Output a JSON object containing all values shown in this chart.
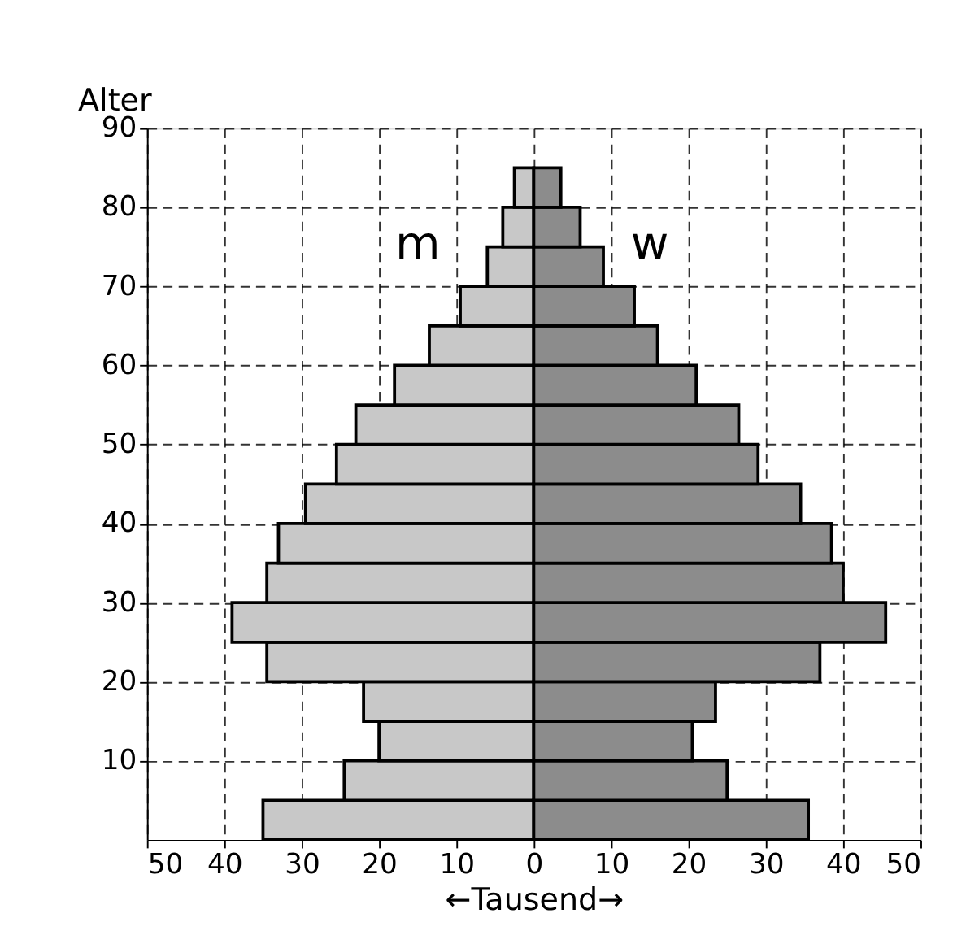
{
  "chart_data": {
    "type": "bar",
    "orientation": "horizontal",
    "stacked": true,
    "xlabel": "←Tausend→",
    "ylabel": "Alter",
    "x": [
      2.5,
      7.5,
      12.5,
      17.5,
      22.5,
      27.5,
      32.5,
      37.5,
      42.5,
      47.5,
      52.5,
      57.5,
      62.5,
      67.5,
      72.5,
      77.5,
      82.5
    ],
    "series": [
      {
        "name": "m",
        "color": "#c8c8c8",
        "values": [
          -35,
          -24.5,
          -20,
          -22,
          -34.5,
          -39,
          -34.5,
          -33,
          -29.5,
          -25.5,
          -23,
          -18,
          -13.5,
          -9.5,
          -6,
          -4,
          -2.5
        ]
      },
      {
        "name": "w",
        "color": "#8c8c8c",
        "values": [
          35.5,
          25,
          20.5,
          23.5,
          37,
          45.5,
          40,
          38.5,
          34.5,
          29,
          26.5,
          21,
          16,
          13,
          9,
          6,
          3.5
        ]
      }
    ],
    "xlim": [
      -50,
      50
    ],
    "xticks": [
      {
        "value": -50,
        "label": "50"
      },
      {
        "value": -40,
        "label": "40"
      },
      {
        "value": -30,
        "label": "30"
      },
      {
        "value": -20,
        "label": "20"
      },
      {
        "value": -10,
        "label": "10"
      },
      0,
      10,
      20,
      30,
      40,
      50
    ],
    "ylim": [
      0,
      90
    ],
    "yticks": [
      10,
      20,
      30,
      40,
      50,
      60,
      70,
      80,
      90
    ],
    "grid": true
  }
}
